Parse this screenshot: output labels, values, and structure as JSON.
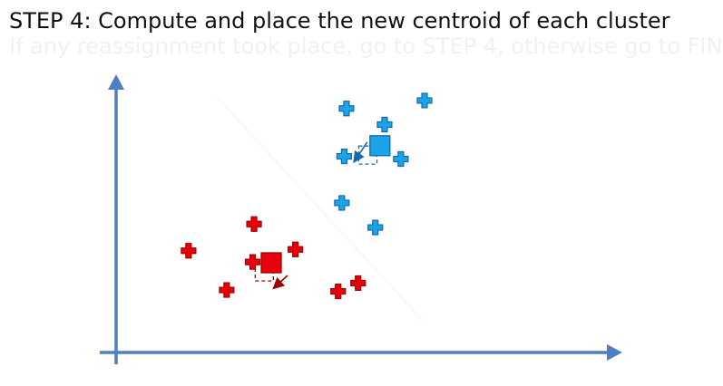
{
  "title": {
    "step": "STEP 4",
    "rest": ": Compute and place the new centroid of each cluster"
  },
  "ghost_text": "If any reassignment took place, go to STEP 4, otherwise go to FIN",
  "colors": {
    "axis": "#4f7ec3",
    "cluster_red": "#e8000b",
    "cluster_blue": "#1aa3e8",
    "cluster_blue_stroke": "#1669a8",
    "cluster_red_stroke": "#a10000"
  },
  "chart_data": {
    "type": "scatter",
    "title": "",
    "xlabel": "",
    "ylabel": "",
    "xlim": [
      0,
      100
    ],
    "ylim": [
      0,
      100
    ],
    "grid": false,
    "series": [
      {
        "cluster": "red",
        "marker": "cross",
        "points": [
          [
            15.6,
            38.4
          ],
          [
            29.7,
            48.4
          ],
          [
            29.4,
            34.2
          ],
          [
            38.6,
            38.9
          ],
          [
            23.8,
            23.7
          ],
          [
            47.8,
            23.2
          ],
          [
            52.1,
            26.3
          ]
        ],
        "centroid": [
          33.4,
          33.9
        ],
        "old_centroid": [
          31.9,
          30.5
        ]
      },
      {
        "cluster": "blue",
        "marker": "cross",
        "points": [
          [
            49.6,
            91.6
          ],
          [
            66.4,
            94.6
          ],
          [
            57.8,
            85.6
          ],
          [
            49.1,
            73.7
          ],
          [
            61.3,
            72.7
          ],
          [
            48.6,
            56.3
          ],
          [
            55.8,
            47.1
          ]
        ],
        "centroid": [
          56.8,
          77.7
        ],
        "old_centroid": [
          54.2,
          74.2
        ]
      }
    ]
  }
}
